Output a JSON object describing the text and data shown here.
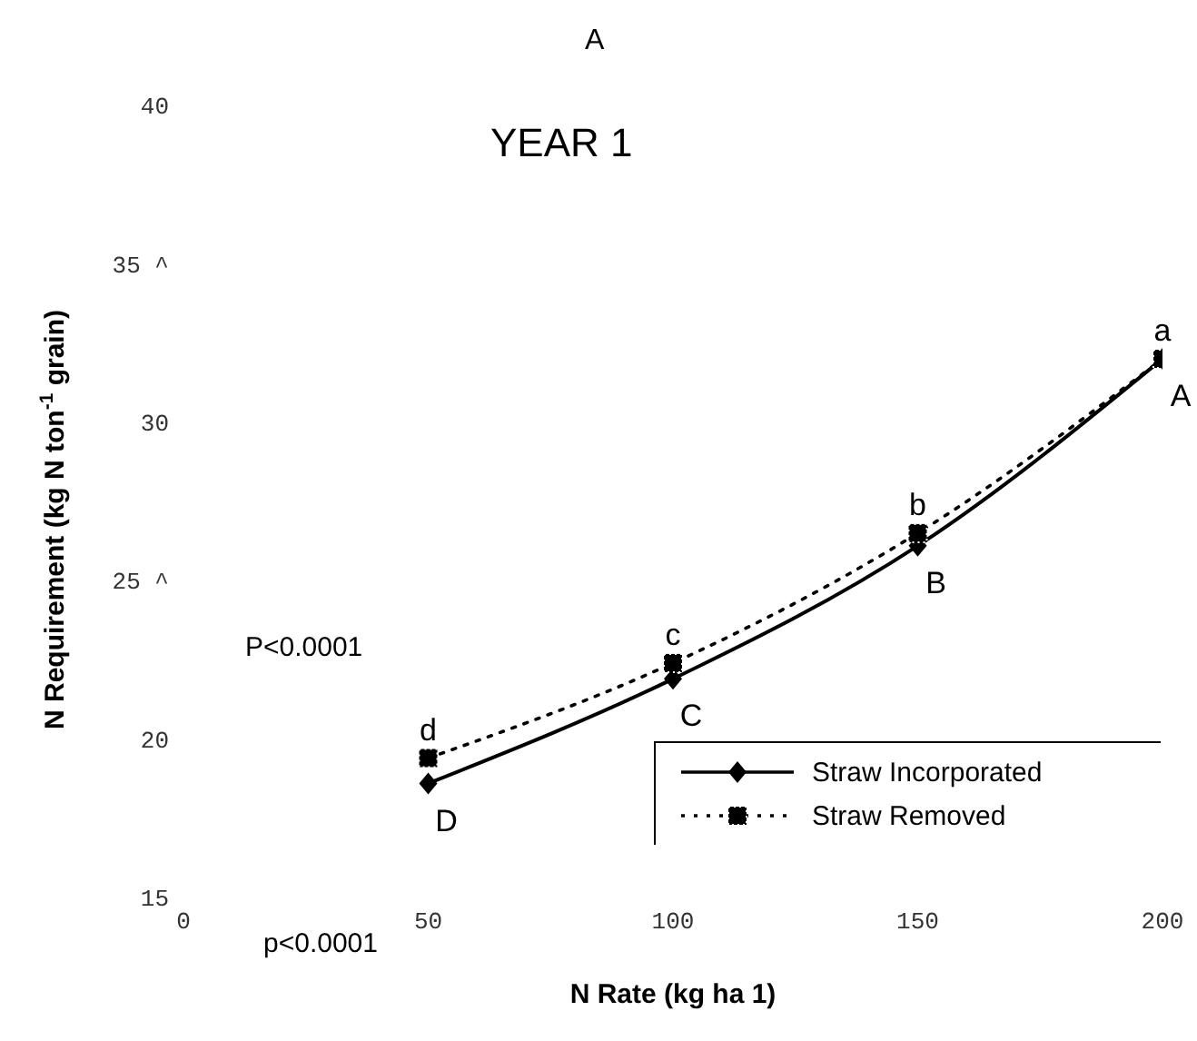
{
  "chart_data": {
    "type": "line",
    "title": "YEAR 1",
    "xlabel": "N Rate (kg ha 1)",
    "ylabel": "N Requirement (kg N ton$^{-1}$ grain)",
    "x": [
      50,
      100,
      150,
      200
    ],
    "series": [
      {
        "name": "Straw Incorporated",
        "color": "#000000",
        "values": [
          18.6,
          21.9,
          26.1,
          32.0
        ],
        "marker": "diamond",
        "line_style": "solid"
      },
      {
        "name": "Straw Removed",
        "color": "#000000",
        "values": [
          19.4,
          22.4,
          26.5,
          32.0
        ],
        "marker": "square",
        "line_style": "dotted"
      }
    ],
    "xlim": [
      0,
      200
    ],
    "xticks": [
      0,
      50,
      100,
      150,
      200
    ],
    "ylim": [
      15,
      40
    ],
    "yticks": [
      15,
      20,
      {
        "value": 25,
        "label": "25 ^"
      },
      30,
      {
        "value": 35,
        "label": "35 ^"
      },
      40
    ],
    "grid": false,
    "legend": "bottom right",
    "annotations": [
      "A",
      "P<0.0001",
      "p<0.0001",
      {
        "text": "a",
        "x": 200,
        "y": 32.0
      },
      {
        "text": "b",
        "x": 150,
        "y": 26.5
      },
      {
        "text": "c",
        "x": 100,
        "y": 22.4
      },
      {
        "text": "d",
        "x": 50,
        "y": 19.4
      },
      {
        "text": "A",
        "x": 200,
        "y": 32.0
      },
      {
        "text": "B",
        "x": 150,
        "y": 26.1
      },
      {
        "text": "C",
        "x": 100,
        "y": 21.9
      },
      {
        "text": "D",
        "x": 50,
        "y": 18.6
      }
    ]
  }
}
